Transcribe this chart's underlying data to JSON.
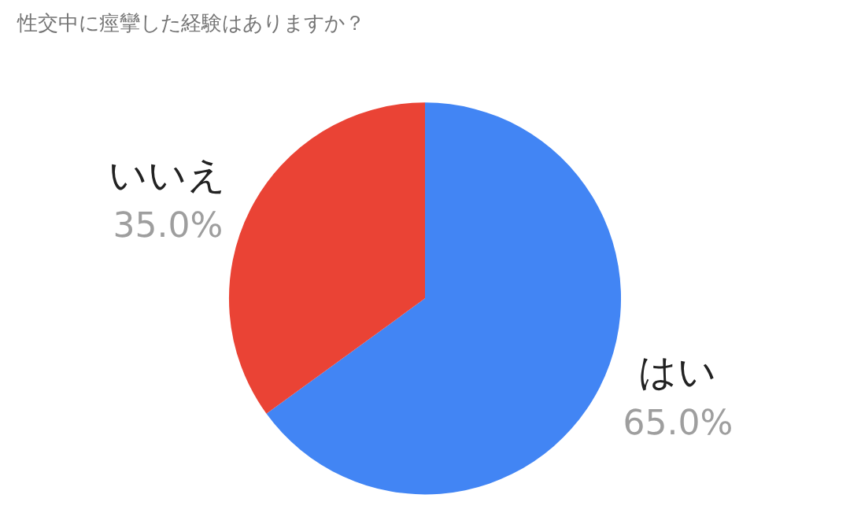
{
  "chart_data": {
    "type": "pie",
    "title": "性交中に痙攣した経験はありますか？",
    "categories": [
      "はい",
      "いいえ"
    ],
    "values": [
      65.0,
      35.0
    ],
    "value_labels": [
      "65.0%",
      "35.0%"
    ],
    "colors": [
      "#4285f4",
      "#ea4335"
    ],
    "legend": false
  }
}
